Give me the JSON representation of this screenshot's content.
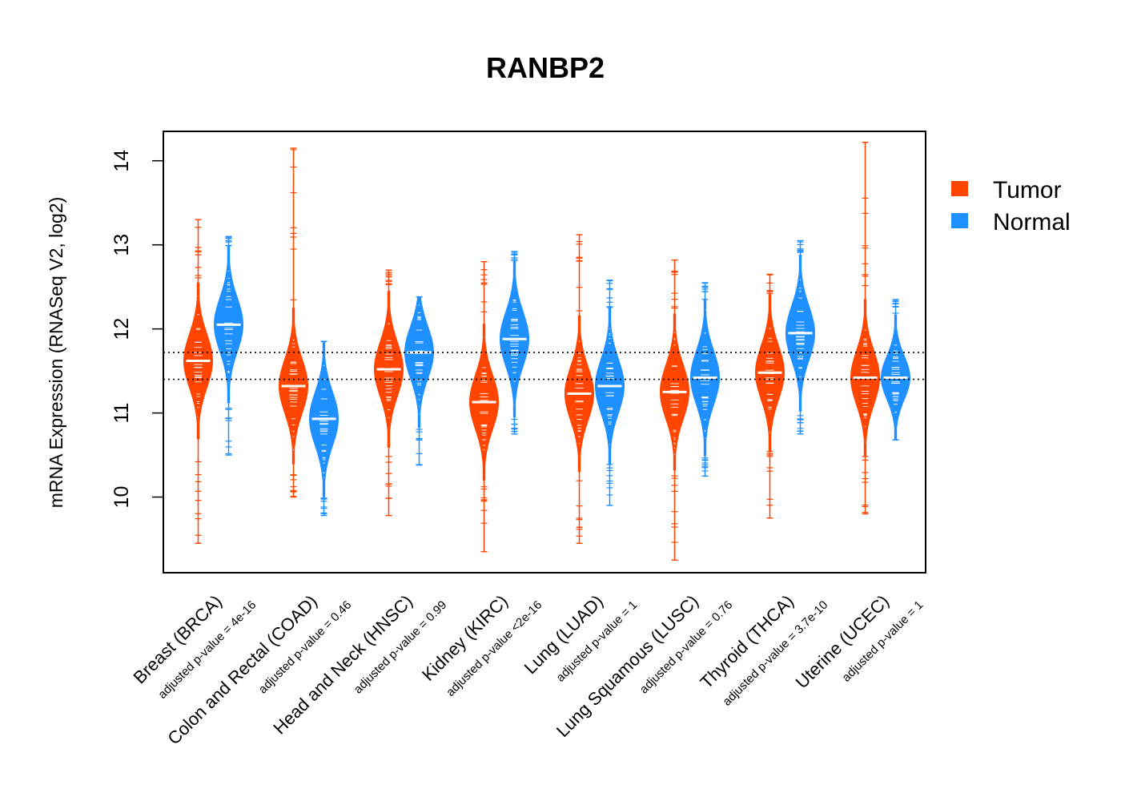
{
  "chart_data": {
    "type": "violin",
    "title": "RANBP2",
    "xlabel": "",
    "ylabel": "mRNA Expression (RNASeq V2, log2)",
    "ylim": [
      9.1,
      14.35
    ],
    "yticks": [
      10,
      11,
      12,
      13,
      14
    ],
    "grid": false,
    "legend_position": "right",
    "reference_lines": [
      11.72,
      11.4
    ],
    "colors": {
      "Tumor": "#ff4500",
      "Normal": "#1e90ff"
    },
    "legend": [
      {
        "label": "Tumor",
        "color": "#ff4500"
      },
      {
        "label": "Normal",
        "color": "#1e90ff"
      }
    ],
    "categories": [
      {
        "label": "Breast (BRCA)",
        "pvalue": "adjusted p-value = 4e-16"
      },
      {
        "label": "Colon and Rectal (COAD)",
        "pvalue": "adjusted p-value = 0.46"
      },
      {
        "label": "Head and Neck (HNSC)",
        "pvalue": "adjusted p-value = 0.99"
      },
      {
        "label": "Kidney (KIRC)",
        "pvalue": "adjusted p-value <2e-16"
      },
      {
        "label": "Lung (LUAD)",
        "pvalue": "adjusted p-value = 1"
      },
      {
        "label": "Lung Squamous (LUSC)",
        "pvalue": "adjusted p-value = 0.76"
      },
      {
        "label": "Thyroid (THCA)",
        "pvalue": "adjusted p-value = 3.7e-10"
      },
      {
        "label": "Uterine (UCEC)",
        "pvalue": "adjusted p-value = 1"
      }
    ],
    "series": [
      {
        "name": "Tumor",
        "values": [
          {
            "median": 11.62,
            "min": 9.45,
            "max": 13.3
          },
          {
            "median": 11.32,
            "min": 10.0,
            "max": 14.15
          },
          {
            "median": 11.52,
            "min": 9.78,
            "max": 12.7
          },
          {
            "median": 11.13,
            "min": 9.35,
            "max": 12.8
          },
          {
            "median": 11.23,
            "min": 9.45,
            "max": 13.12
          },
          {
            "median": 11.25,
            "min": 9.25,
            "max": 12.82
          },
          {
            "median": 11.48,
            "min": 9.75,
            "max": 12.65
          },
          {
            "median": 11.42,
            "min": 9.8,
            "max": 14.22
          }
        ]
      },
      {
        "name": "Normal",
        "values": [
          {
            "median": 12.05,
            "min": 10.5,
            "max": 13.1
          },
          {
            "median": 10.93,
            "min": 9.78,
            "max": 11.85
          },
          {
            "median": 11.72,
            "min": 10.38,
            "max": 12.38
          },
          {
            "median": 11.88,
            "min": 10.75,
            "max": 12.92
          },
          {
            "median": 11.32,
            "min": 9.9,
            "max": 12.58
          },
          {
            "median": 11.42,
            "min": 10.25,
            "max": 12.55
          },
          {
            "median": 11.95,
            "min": 10.75,
            "max": 13.05
          },
          {
            "median": 11.42,
            "min": 10.68,
            "max": 12.35
          }
        ]
      }
    ]
  }
}
